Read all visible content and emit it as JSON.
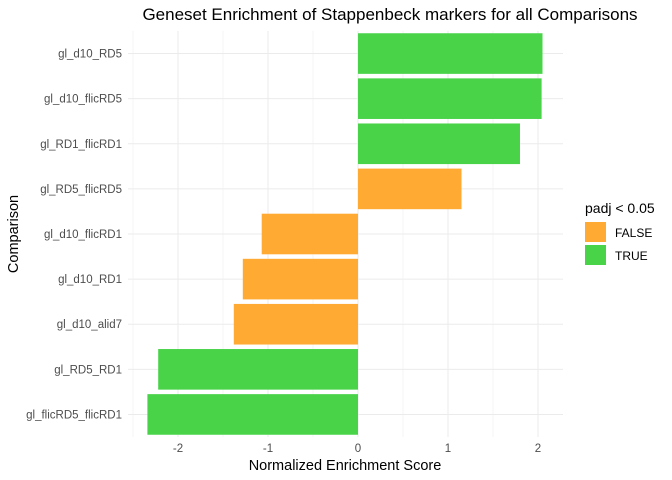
{
  "colors": {
    "FALSE": "#FFAA33",
    "TRUE": "#48D348",
    "gridline": "#EBEBEB",
    "background": "#FFFFFF"
  },
  "chart_data": {
    "type": "bar",
    "orientation": "horizontal",
    "title": "Geneset Enrichment of Stappenbeck markers for all Comparisons",
    "xlabel": "Normalized Enrichment Score",
    "ylabel": "Comparison",
    "xlim": [
      -2.5,
      2.25
    ],
    "x_ticks": [
      -2,
      -1,
      0,
      1,
      2
    ],
    "x_tick_labels": [
      "-2",
      "-1",
      "0",
      "1",
      "2"
    ],
    "grid": true,
    "legend": {
      "title": "padj < 0.05",
      "position": "right",
      "entries": [
        {
          "label": "FALSE",
          "color_key": "FALSE"
        },
        {
          "label": "TRUE",
          "color_key": "TRUE"
        }
      ]
    },
    "categories": [
      "gl_d10_RD5",
      "gl_d10_flicRD5",
      "gl_RD1_flicRD1",
      "gl_RD5_flicRD5",
      "gl_d10_flicRD1",
      "gl_d10_RD1",
      "gl_d10_alid7",
      "gl_RD5_RD1",
      "gl_flicRD5_flicRD1"
    ],
    "values": [
      2.05,
      2.04,
      1.8,
      1.15,
      -1.07,
      -1.28,
      -1.38,
      -2.22,
      -2.34
    ],
    "padj_significant": [
      "TRUE",
      "TRUE",
      "TRUE",
      "FALSE",
      "FALSE",
      "FALSE",
      "FALSE",
      "TRUE",
      "TRUE"
    ]
  }
}
